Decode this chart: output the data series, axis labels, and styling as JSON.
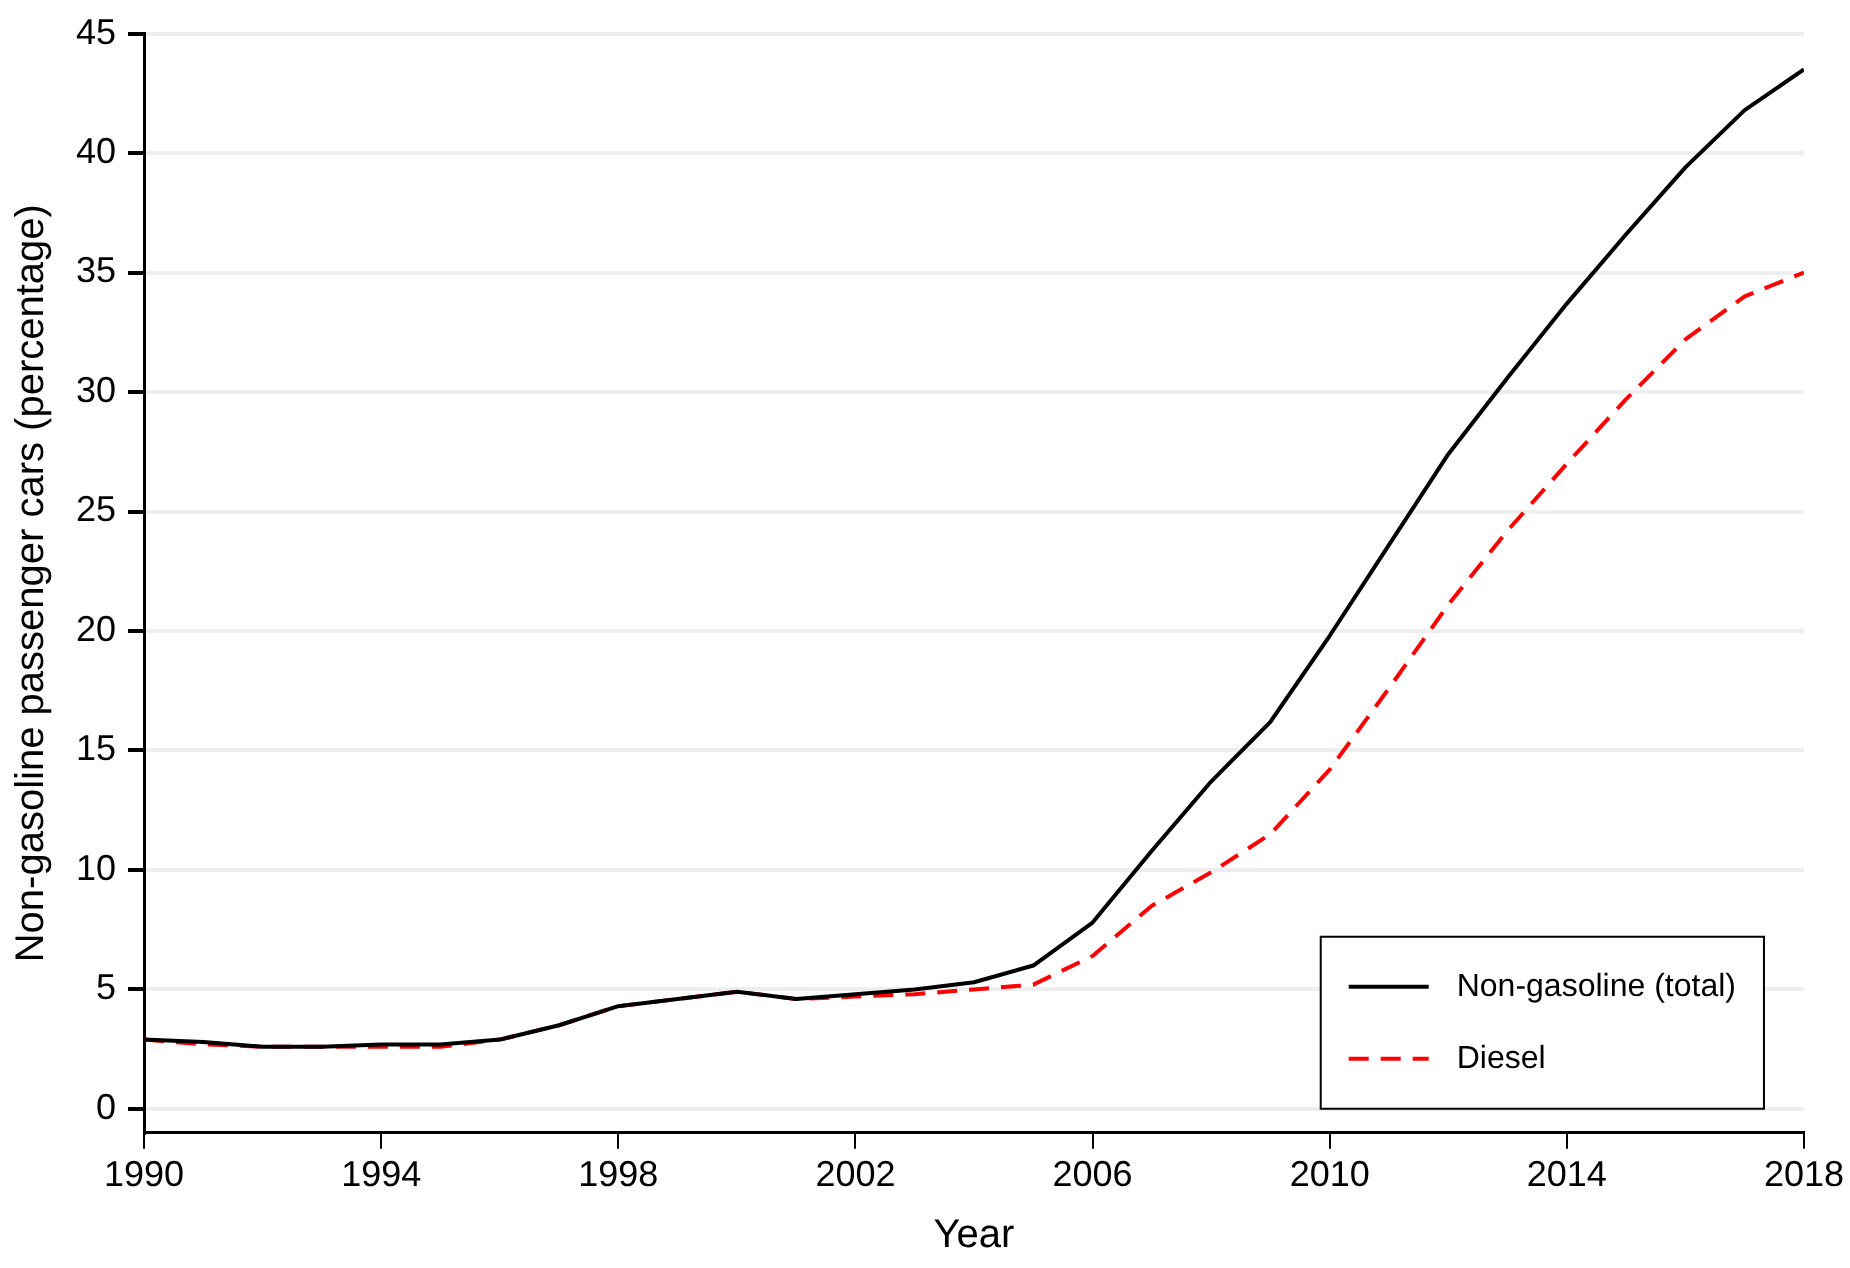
{
  "chart_data": {
    "type": "line",
    "xlabel": "Year",
    "ylabel": "Non-gasoline passenger cars (percentage)",
    "x": [
      1990,
      1991,
      1992,
      1993,
      1994,
      1995,
      1996,
      1997,
      1998,
      1999,
      2000,
      2001,
      2002,
      2003,
      2004,
      2005,
      2006,
      2007,
      2008,
      2009,
      2010,
      2011,
      2012,
      2013,
      2014,
      2015,
      2016,
      2017,
      2018
    ],
    "series": [
      {
        "name": "Non-gasoline (total)",
        "color": "#000000",
        "line_style": "solid",
        "values": [
          2.9,
          2.8,
          2.6,
          2.6,
          2.7,
          2.7,
          2.9,
          3.5,
          4.3,
          4.6,
          4.9,
          4.6,
          4.8,
          5.0,
          5.3,
          6.0,
          7.8,
          10.8,
          13.7,
          16.2,
          19.8,
          23.6,
          27.4,
          30.6,
          33.7,
          36.6,
          39.4,
          41.8,
          43.5
        ]
      },
      {
        "name": "Diesel",
        "color": "#ff0000",
        "line_style": "dashed",
        "values": [
          2.9,
          2.7,
          2.6,
          2.6,
          2.6,
          2.6,
          2.9,
          3.5,
          4.3,
          4.6,
          4.9,
          4.6,
          4.7,
          4.8,
          5.0,
          5.2,
          6.4,
          8.5,
          9.9,
          11.5,
          14.2,
          17.6,
          21.1,
          24.2,
          27.0,
          29.7,
          32.2,
          34.0,
          35.0
        ]
      }
    ],
    "xlim": [
      1990,
      2018
    ],
    "xticks": [
      1990,
      1994,
      1998,
      2002,
      2006,
      2010,
      2014,
      2018
    ],
    "ylim": [
      -1,
      45
    ],
    "yticks": [
      0,
      5,
      10,
      15,
      20,
      25,
      30,
      35,
      40,
      45
    ],
    "grid": "y",
    "legend": "bottom right",
    "marker": "none"
  }
}
